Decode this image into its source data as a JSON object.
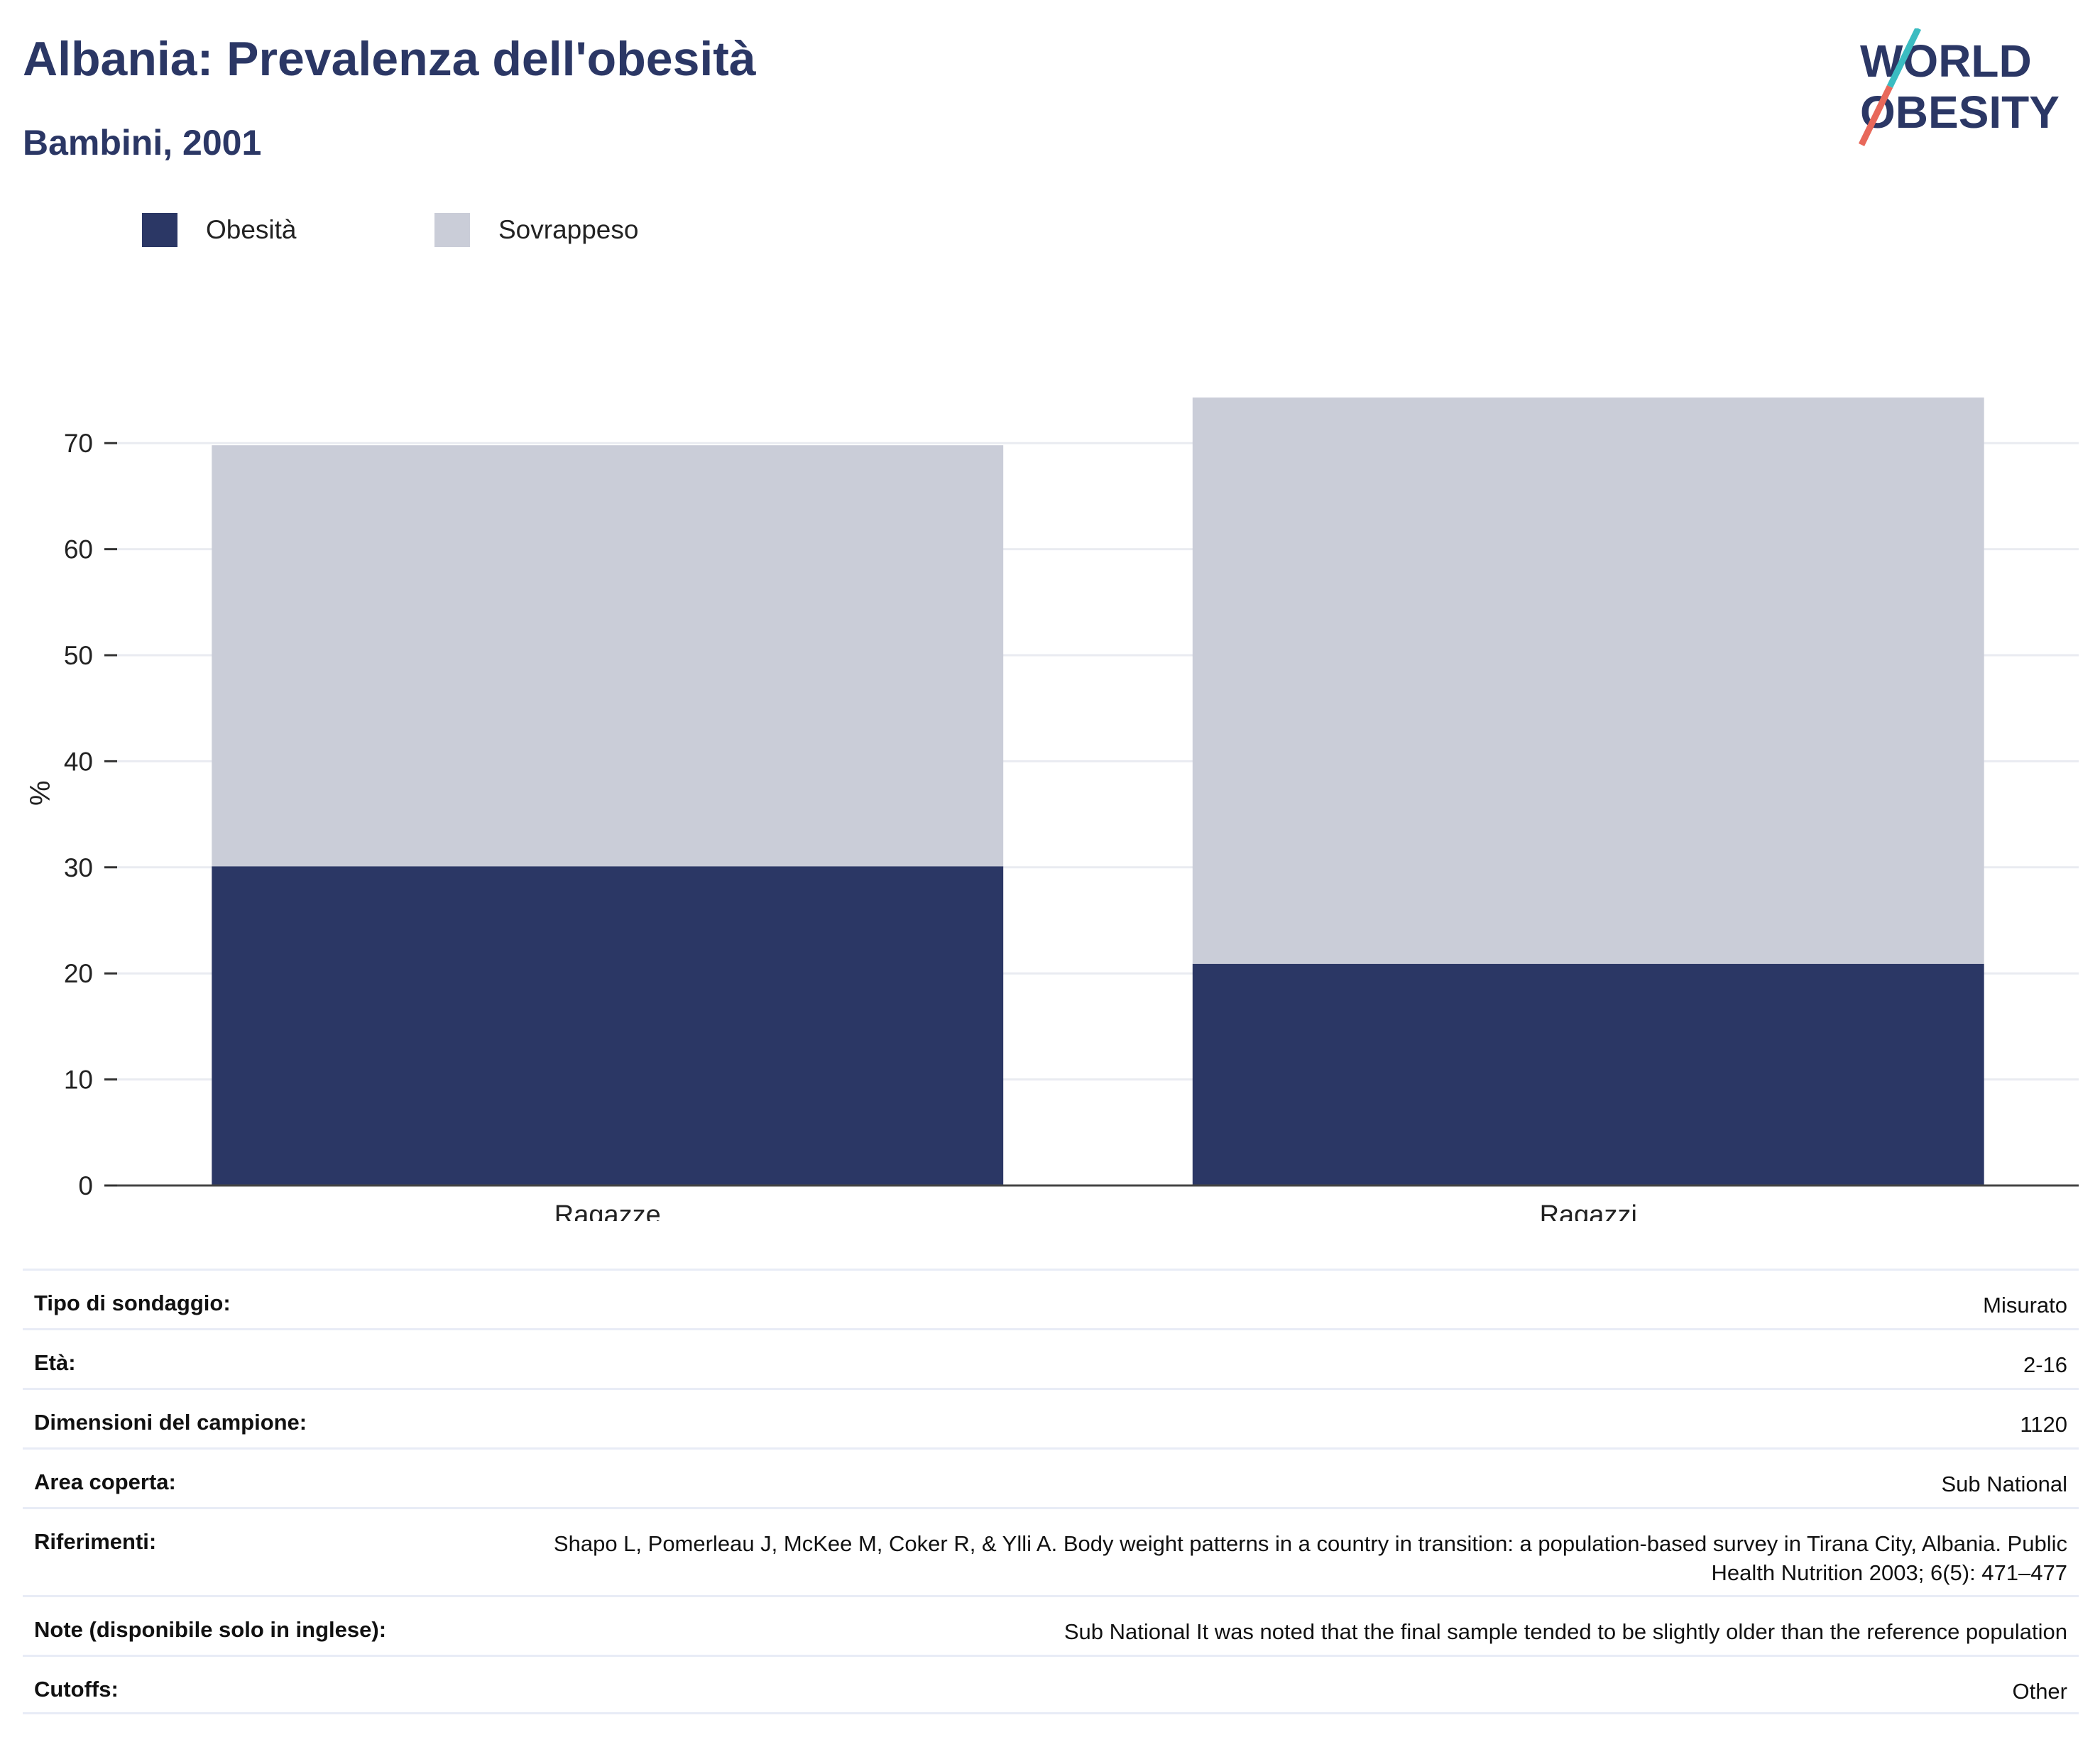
{
  "header": {
    "title": "Albania: Prevalenza dell'obesità",
    "subtitle": "Bambini, 2001"
  },
  "logo": {
    "line1": "WORLD",
    "line2": "OBESITY",
    "colors": [
      "#2b3765",
      "#e8685a",
      "#3bbcc1"
    ]
  },
  "chart_data": {
    "type": "bar",
    "stacked": true,
    "categories": [
      "Ragazze",
      "Ragazzi"
    ],
    "series": [
      {
        "name": "Obesità",
        "color": "#2b3765",
        "values": [
          30.1,
          20.9
        ]
      },
      {
        "name": "Sovrappeso",
        "color": "#cacdd8",
        "values": [
          39.7,
          53.4
        ]
      }
    ],
    "ylabel": "%",
    "ylim": [
      0,
      75
    ],
    "yticks": [
      0,
      10,
      20,
      30,
      40,
      50,
      60,
      70
    ],
    "grid": true,
    "legend": "top-left"
  },
  "info": {
    "rows": [
      {
        "label": "Tipo di sondaggio:",
        "value": "Misurato"
      },
      {
        "label": "Età:",
        "value": "2-16"
      },
      {
        "label": "Dimensioni del campione:",
        "value": "1120"
      },
      {
        "label": "Area coperta:",
        "value": "Sub National"
      },
      {
        "label": "Riferimenti:",
        "value": "Shapo L, Pomerleau J, McKee M, Coker R, & Ylli A. Body weight patterns in a country in transition: a population-based survey in Tirana City, Albania. Public Health Nutrition 2003; 6(5): 471–477"
      },
      {
        "label": "Note (disponibile solo in inglese):",
        "value": "Sub National It was noted that the final sample tended to be slightly older than the reference population"
      },
      {
        "label": "Cutoffs:",
        "value": "Other"
      }
    ]
  }
}
